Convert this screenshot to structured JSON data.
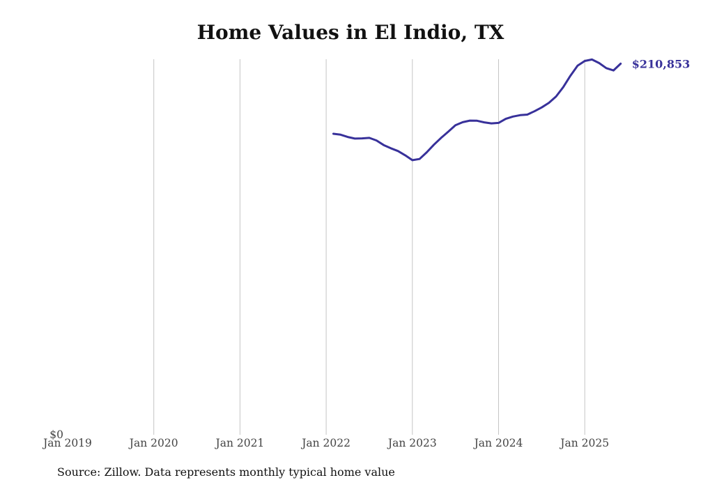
{
  "chart_data": {
    "type": "line",
    "title": "Home Values in El Indio, TX",
    "xlabel": "",
    "ylabel": "",
    "x_ticks": [
      "Jan 2019",
      "Jan 2020",
      "Jan 2021",
      "Jan 2022",
      "Jan 2023",
      "Jan 2024",
      "Jan 2025"
    ],
    "y_ticks": [
      "$0"
    ],
    "ylim": [
      0,
      211000
    ],
    "grid": "vertical lines at each January",
    "line_color": "#38319a",
    "end_label": "$210,853",
    "series": [
      {
        "x": [
          "2022-02",
          "2022-03",
          "2022-04",
          "2022-05",
          "2022-06",
          "2022-07",
          "2022-08",
          "2022-09",
          "2022-10",
          "2022-11",
          "2022-12",
          "2023-01",
          "2023-02",
          "2023-03",
          "2023-04",
          "2023-05",
          "2023-06",
          "2023-07",
          "2023-08",
          "2023-09",
          "2023-10",
          "2023-11",
          "2023-12",
          "2024-01",
          "2024-02",
          "2024-03",
          "2024-04",
          "2024-05",
          "2024-06",
          "2024-07",
          "2024-08",
          "2024-09",
          "2024-10",
          "2024-11",
          "2024-12",
          "2025-01",
          "2025-02",
          "2025-03",
          "2025-04",
          "2025-05",
          "2025-06"
        ],
        "values": [
          171000,
          170500,
          169200,
          168300,
          168400,
          168700,
          167200,
          164600,
          162800,
          161200,
          158800,
          156000,
          156700,
          160500,
          164800,
          168700,
          172200,
          175900,
          177600,
          178500,
          178400,
          177500,
          176900,
          177200,
          179500,
          180800,
          181600,
          181900,
          183800,
          186000,
          188600,
          192200,
          197500,
          204000,
          209700,
          212400,
          213200,
          211200,
          208300,
          207000,
          210853
        ]
      }
    ]
  },
  "footer": {
    "source": "Source: Zillow. Data represents monthly typical home value"
  }
}
